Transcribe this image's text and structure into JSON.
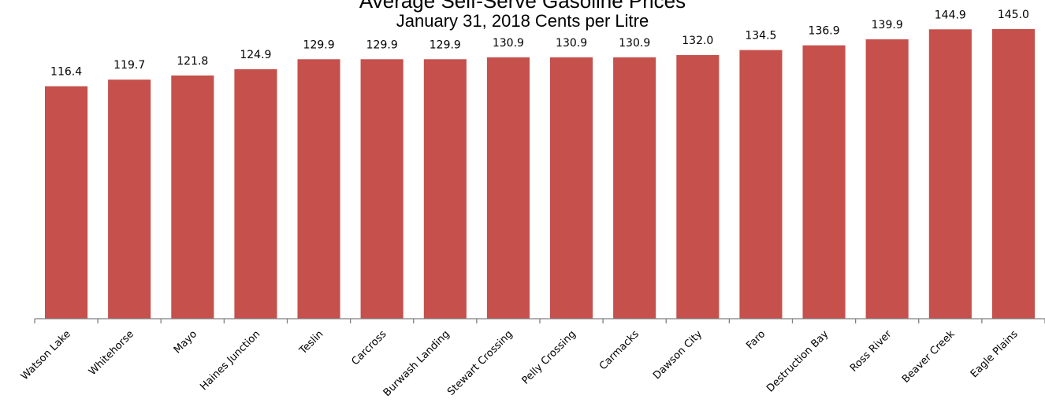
{
  "chart_data": {
    "type": "bar",
    "title": "Average Self-Serve Gasoline Prices",
    "subtitle": "January 31, 2018 Cents per Litre",
    "categories": [
      "Watson Lake",
      "Whitehorse",
      "Mayo",
      "Haines Junction",
      "Teslin",
      "Carcross",
      "Burwash Landing",
      "Stewart Crossing",
      "Pelly Crossing",
      "Carmacks",
      "Dawson City",
      "Faro",
      "Destruction Bay",
      "Ross River",
      "Beaver Creek",
      "Eagle Plains"
    ],
    "values": [
      116.4,
      119.7,
      121.8,
      124.9,
      129.9,
      129.9,
      129.9,
      130.9,
      130.9,
      130.9,
      132.0,
      134.5,
      136.9,
      139.9,
      144.9,
      145.0
    ],
    "value_labels": [
      "116.4",
      "119.7",
      "121.8",
      "124.9",
      "129.9",
      "129.9",
      "129.9",
      "130.9",
      "130.9",
      "130.9",
      "132.0",
      "134.5",
      "136.9",
      "139.9",
      "144.9",
      "145.0"
    ],
    "ylim": [
      0,
      145
    ],
    "grid": false,
    "legend": "none",
    "colors": {
      "bar": "#c5504c",
      "axis": "#808080"
    }
  }
}
